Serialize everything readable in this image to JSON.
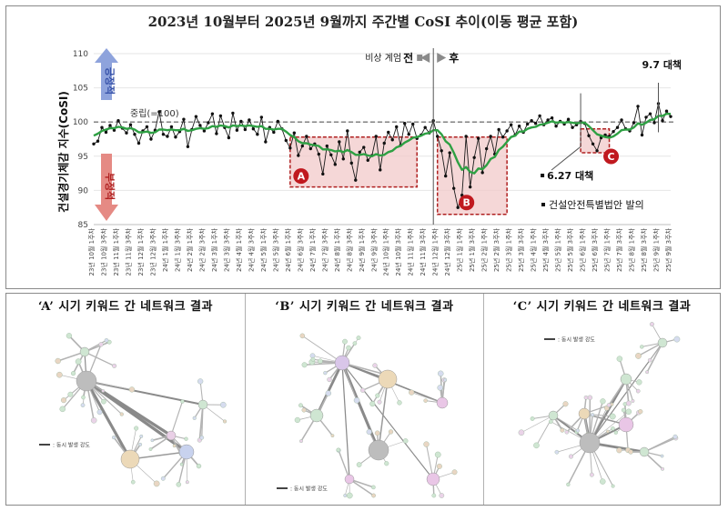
{
  "chart_data": {
    "type": "line",
    "title": "2023년 10월부터 2025년 9월까지 주간별 CoSI 추이(이동 평균 포함)",
    "ylabel": "건설경기체감 지수(CoSI)",
    "ylim": [
      85,
      110
    ],
    "yticks": [
      85,
      90,
      95,
      100,
      105,
      110
    ],
    "neutral_label": "중립(=100)",
    "neutral_value": 100,
    "positive_label": "긍정적",
    "negative_label": "부정적",
    "x_labels": [
      "23년 10월 1주차",
      "23년 10월 3주차",
      "23년 11월 1주차",
      "23년 11월 3주차",
      "23년 12월 1주차",
      "23년 12월 3주차",
      "24년 1월 1주차",
      "24년 1월 3주차",
      "24년 2월 1주차",
      "24년 2월 3주차",
      "24년 3월 1주차",
      "24년 3월 3주차",
      "24년 4월 1주차",
      "24년 4월 3주차",
      "24년 5월 1주차",
      "24년 5월 3주차",
      "24년 6월 1주차",
      "24년 6월 3주차",
      "24년 7월 1주차",
      "24년 7월 3주차",
      "24년 8월 1주차",
      "24년 8월 3주차",
      "24년 9월 1주차",
      "24년 9월 3주차",
      "24년 10월 1주차",
      "24년 10월 3주차",
      "24년 11월 1주차",
      "24년 11월 3주차",
      "24년 12월 1주차",
      "24년 12월 3주차",
      "25년 1월 1주차",
      "25년 1월 3주차",
      "25년 2월 1주차",
      "25년 2월 3주차",
      "25년 3월 1주차",
      "25년 3월 3주차",
      "25년 4월 1주차",
      "25년 4월 3주차",
      "25년 5월 1주차",
      "25년 5월 3주차",
      "25년 6월 1주차",
      "25년 6월 3주차",
      "25년 7월 1주차",
      "25년 7월 3주차",
      "25년 8월 1주차",
      "25년 8월 3주차",
      "25년 9월 1주차",
      "25년 9월 3주차"
    ],
    "series": [
      {
        "name": "CoSI",
        "values": [
          96.8,
          97.2,
          99.2,
          98.5,
          99.5,
          98.8,
          100.2,
          99.1,
          98.4,
          99.6,
          98.2,
          96.9,
          98.7,
          99.3,
          97.5,
          98.8,
          101.5,
          98.2,
          97.9,
          99.3,
          97.8,
          98.6,
          100.4,
          96.4,
          98.9,
          100.8,
          99.5,
          98.7,
          99.9,
          101.2,
          98.3,
          100.9,
          99.2,
          97.7,
          101.3,
          98.8,
          100.1,
          98.9,
          100.3,
          99.0,
          98.2,
          100.7,
          97.1,
          99.2,
          98.5,
          100.1,
          99.0,
          97.3,
          96.2,
          98.4,
          95.1,
          96.5,
          97.9,
          96.1,
          96.8,
          95.3,
          92.4,
          96.5,
          95.2,
          93.8,
          97.1,
          94.6,
          98.7,
          94.0,
          91.5,
          95.6,
          96.3,
          94.4,
          95.1,
          97.9,
          93.0,
          96.9,
          98.5,
          97.4,
          99.3,
          96.6,
          99.8,
          98.2,
          99.7,
          97.6,
          98.1,
          99.2,
          98.4,
          100.2,
          97.9,
          95.8,
          92.1,
          95.5,
          90.3,
          87.5,
          89.3,
          97.9,
          90.5,
          94.8,
          97.6,
          92.6,
          96.1,
          97.9,
          95.3,
          98.9,
          97.8,
          98.7,
          99.6,
          98.1,
          99.4,
          98.5,
          99.7,
          100.2,
          99.8,
          100.9,
          99.6,
          100.3,
          100.6,
          99.4,
          100.1,
          99.7,
          100.4,
          99.2,
          99.6,
          100.1,
          99.8,
          98.0,
          96.8,
          95.8,
          97.7,
          98.1,
          97.9,
          98.6,
          99.2,
          100.3,
          99.0,
          98.7,
          99.9,
          102.3,
          98.1,
          100.7,
          101.2,
          99.9,
          102.7,
          100.2,
          101.6,
          100.8
        ]
      },
      {
        "name": "이동 평균",
        "values": [
          98.0,
          98.3,
          98.7,
          98.9,
          99.1,
          99.1,
          99.3,
          99.2,
          99.0,
          99.1,
          98.9,
          98.5,
          98.5,
          98.6,
          98.4,
          98.5,
          98.9,
          98.9,
          98.8,
          98.9,
          98.8,
          98.8,
          99.0,
          98.7,
          98.8,
          99.0,
          99.1,
          99.0,
          99.1,
          99.4,
          99.3,
          99.5,
          99.4,
          99.2,
          99.5,
          99.4,
          99.5,
          99.4,
          99.5,
          99.4,
          99.3,
          99.4,
          99.0,
          99.0,
          98.9,
          99.0,
          99.0,
          98.6,
          98.1,
          97.8,
          97.2,
          96.9,
          96.9,
          96.7,
          96.6,
          96.5,
          96.0,
          96.0,
          95.9,
          95.7,
          95.8,
          95.6,
          95.9,
          95.6,
          95.2,
          95.2,
          95.3,
          95.1,
          95.0,
          95.3,
          95.1,
          95.2,
          95.6,
          95.8,
          96.3,
          96.5,
          97.0,
          97.3,
          97.7,
          97.8,
          98.0,
          98.3,
          98.4,
          98.8,
          98.8,
          98.2,
          97.2,
          96.7,
          95.5,
          94.1,
          93.0,
          93.4,
          92.7,
          92.5,
          93.2,
          93.1,
          93.7,
          94.6,
          94.9,
          95.9,
          96.4,
          97.1,
          97.8,
          98.0,
          98.6,
          98.6,
          99.0,
          99.2,
          99.3,
          99.6,
          99.7,
          99.9,
          100.1,
          99.9,
          100.0,
          99.9,
          100.0,
          99.9,
          99.8,
          99.9,
          99.9,
          99.4,
          98.8,
          98.2,
          98.0,
          97.8,
          97.7,
          97.9,
          98.3,
          98.8,
          98.9,
          98.9,
          99.2,
          99.8,
          99.6,
          99.9,
          100.3,
          100.4,
          100.9,
          100.9,
          101.2,
          101.2
        ]
      }
    ],
    "regions": [
      {
        "label": "A",
        "from": 48,
        "to": 79,
        "ymin": 90.5,
        "ymax": 97.8
      },
      {
        "label": "B",
        "from": 84,
        "to": 101,
        "ymin": 86.5,
        "ymax": 97.8
      },
      {
        "label": "C",
        "from": 119,
        "to": 126,
        "ymin": 95.5,
        "ymax": 99.0
      }
    ],
    "annotations": {
      "martial_law_prefix": "비상 계엄",
      "before": "전",
      "after": "후",
      "measure_627": "6.27 대책",
      "measure_97": "9.7 대책",
      "legislation": "건설안전특별법안 발의"
    }
  },
  "network_panels": [
    {
      "title": "‘A’ 시기 키워드 간 네트워크 결과",
      "legend": "동시 발생 강도"
    },
    {
      "title": "‘B’ 시기 키워드 간 네트워크 결과",
      "legend": "동시 발생 강도"
    },
    {
      "title": "‘C’ 시기 키워드 간 네트워크 결과",
      "legend": "동시 발생 강도"
    }
  ],
  "colors": {
    "raw_line": "#1a1a1a",
    "moving_average": "#2ea043",
    "region_fill": "#f2c9c9",
    "region_border": "#b02020",
    "region_badge": "#c0191f",
    "positive_arrow": "#7b93d4",
    "negative_arrow": "#e07b73",
    "neutral_line": "#777777"
  }
}
